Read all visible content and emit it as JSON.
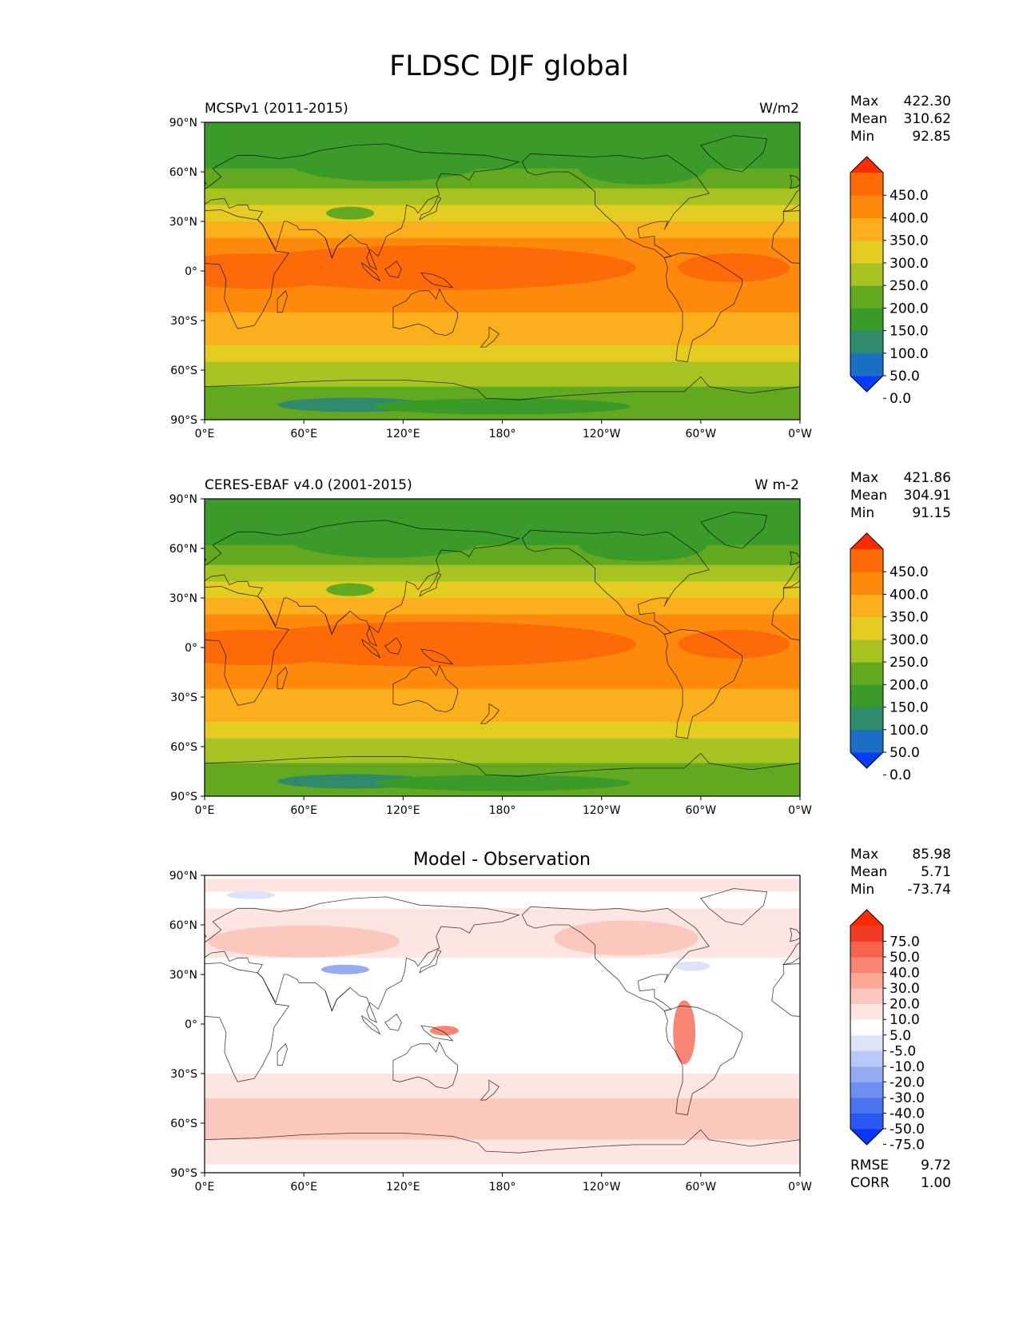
{
  "title": "FLDSC DJF global",
  "panels": [
    {
      "left_title": "MCSPv1 (2011-2015)",
      "right_title": "W/m2",
      "center_title": "",
      "stats": [
        {
          "label": "Max",
          "value": "422.30"
        },
        {
          "label": "Mean",
          "value": "310.62"
        },
        {
          "label": "Min",
          "value": "92.85"
        }
      ],
      "colorbar_labels": [
        "450.0",
        "400.0",
        "350.0",
        "300.0",
        "250.0",
        "200.0",
        "150.0",
        "100.0",
        "50.0",
        "0.0"
      ],
      "colorbar_colors": [
        "#0a3cf5",
        "#1a6ec4",
        "#2e8a6a",
        "#3a9a2a",
        "#62a820",
        "#a8c222",
        "#e4cc22",
        "#fbaf1c",
        "#fd8a0c",
        "#fd6a0a",
        "#fe2a00"
      ],
      "footer_stats": []
    },
    {
      "left_title": "CERES-EBAF v4.0 (2001-2015)",
      "right_title": "W m-2",
      "center_title": "",
      "stats": [
        {
          "label": "Max",
          "value": "421.86"
        },
        {
          "label": "Mean",
          "value": "304.91"
        },
        {
          "label": "Min",
          "value": "91.15"
        }
      ],
      "colorbar_labels": [
        "450.0",
        "400.0",
        "350.0",
        "300.0",
        "250.0",
        "200.0",
        "150.0",
        "100.0",
        "50.0",
        "0.0"
      ],
      "colorbar_colors": [
        "#0a3cf5",
        "#1a6ec4",
        "#2e8a6a",
        "#3a9a2a",
        "#62a820",
        "#a8c222",
        "#e4cc22",
        "#fbaf1c",
        "#fd8a0c",
        "#fd6a0a",
        "#fe2a00"
      ],
      "footer_stats": []
    },
    {
      "left_title": "",
      "right_title": "",
      "center_title": "Model - Observation",
      "stats": [
        {
          "label": "Max",
          "value": "85.98"
        },
        {
          "label": "Mean",
          "value": "5.71"
        },
        {
          "label": "Min",
          "value": "-73.74"
        }
      ],
      "colorbar_labels": [
        "75.0",
        "50.0",
        "40.0",
        "30.0",
        "20.0",
        "10.0",
        "5.0",
        "-5.0",
        "-10.0",
        "-20.0",
        "-30.0",
        "-40.0",
        "-50.0",
        "-75.0"
      ],
      "colorbar_colors": [
        "#0a36f5",
        "#2a56f2",
        "#4a72ee",
        "#6f8ff0",
        "#95acf3",
        "#b9c8f6",
        "#dde4fa",
        "#ffffff",
        "#fde6e2",
        "#fcc8bd",
        "#fba898",
        "#f98674",
        "#f6644e",
        "#f33a22",
        "#fe2a00"
      ],
      "footer_stats": [
        {
          "label": "RMSE",
          "value": "9.72"
        },
        {
          "label": "CORR",
          "value": "1.00"
        }
      ]
    }
  ],
  "lat_labels": [
    "90°N",
    "60°N",
    "30°N",
    "0°",
    "30°S",
    "60°S",
    "90°S"
  ],
  "lon_labels": [
    "0°E",
    "60°E",
    "120°E",
    "180°",
    "120°W",
    "60°W",
    "0°W"
  ],
  "map_colors": {
    "ocean_eq": "#fd6a0a",
    "ocean_trop": "#fd8a0c",
    "ocean_sub": "#fbaf1c",
    "ocean_mid": "#e4cc22",
    "ocean_high": "#a8c222",
    "polar": "#62a820",
    "polar_cold": "#3a9a2a",
    "deep_cold": "#2e8a6a",
    "diff_bg": "#ffffff",
    "diff_pos_light": "#fde6e2",
    "diff_pos": "#fcc8bd",
    "diff_pos_strong": "#f98674",
    "diff_neg_light": "#dde4fa",
    "diff_neg": "#95acf3"
  }
}
